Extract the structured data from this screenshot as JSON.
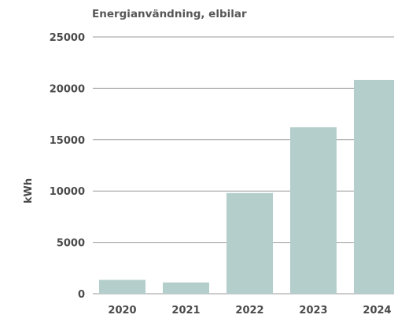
{
  "chart_data": {
    "type": "bar",
    "title": "Energianvändning, elbilar",
    "xlabel": "",
    "ylabel": "kWh",
    "categories": [
      "2020",
      "2021",
      "2022",
      "2023",
      "2024"
    ],
    "values": [
      1350,
      1100,
      9800,
      16200,
      20800
    ],
    "ylim": [
      0,
      25000
    ],
    "yticks": [
      "0",
      "5000",
      "10000",
      "15000",
      "20000",
      "25000"
    ],
    "grid": true,
    "legend": "none",
    "colors": {
      "bar": "#b4cecc",
      "grid": "#9a9a9a",
      "text": "#4a4a4a"
    }
  }
}
